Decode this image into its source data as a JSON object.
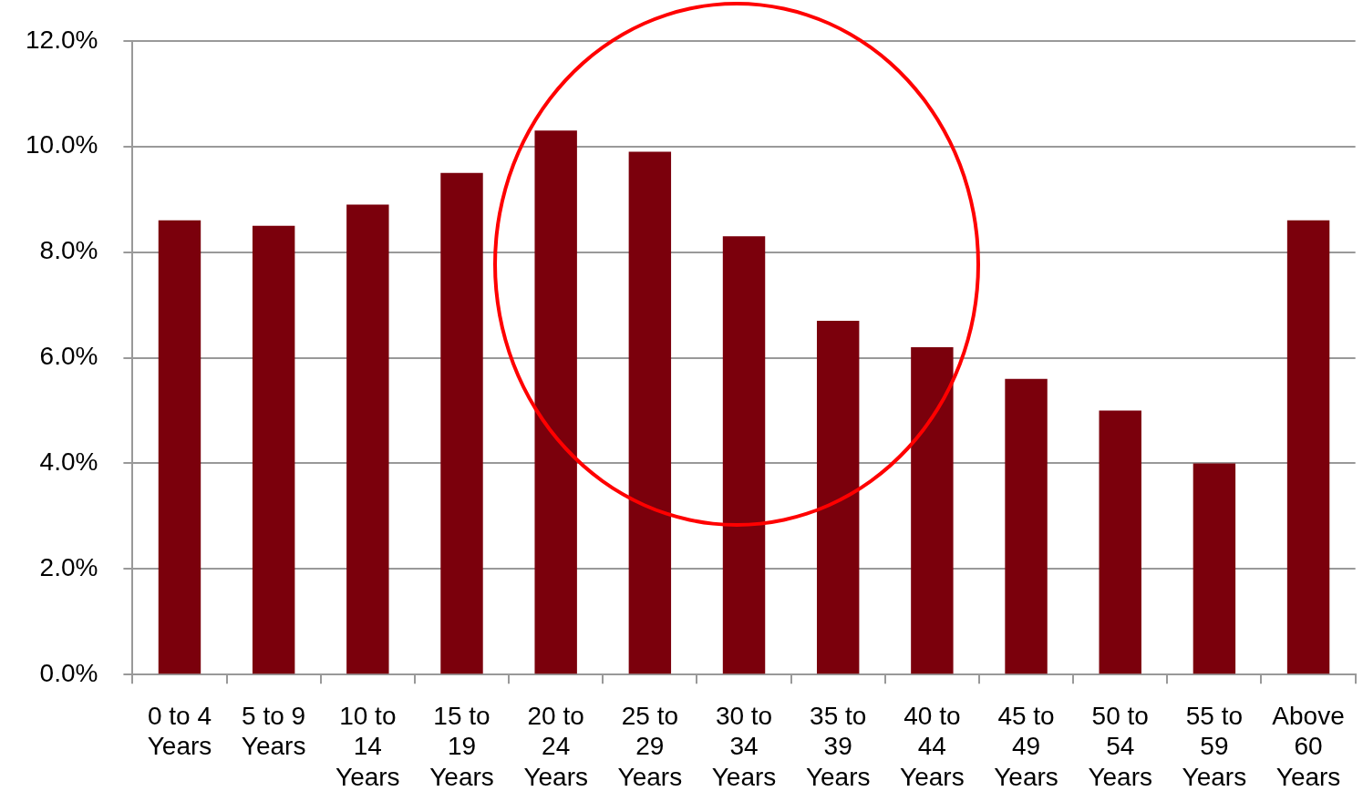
{
  "chart_data": {
    "type": "bar",
    "categories": [
      "0 to 4 Years",
      "5 to 9 Years",
      "10 to 14 Years",
      "15 to 19 Years",
      "20 to 24 Years",
      "25 to 29 Years",
      "30 to 34 Years",
      "35 to 39 Years",
      "40 to 44 Years",
      "45 to 49 Years",
      "50 to 54 Years",
      "55 to 59 Years",
      "Above 60 Years"
    ],
    "values": [
      8.6,
      8.5,
      8.9,
      9.5,
      10.3,
      9.9,
      8.3,
      6.7,
      6.2,
      5.6,
      5.0,
      4.0,
      8.6
    ],
    "color": "#7b000c",
    "ylim": [
      0,
      12
    ],
    "yticks": [
      {
        "value": 0,
        "label": "0.0%"
      },
      {
        "value": 2,
        "label": "2.0%"
      },
      {
        "value": 4,
        "label": "4.0%"
      },
      {
        "value": 6,
        "label": "6.0%"
      },
      {
        "value": 8,
        "label": "8.0%"
      },
      {
        "value": 10,
        "label": "10.0%"
      },
      {
        "value": 12,
        "label": "12.0%"
      }
    ],
    "grid": "y",
    "legend": false
  }
}
